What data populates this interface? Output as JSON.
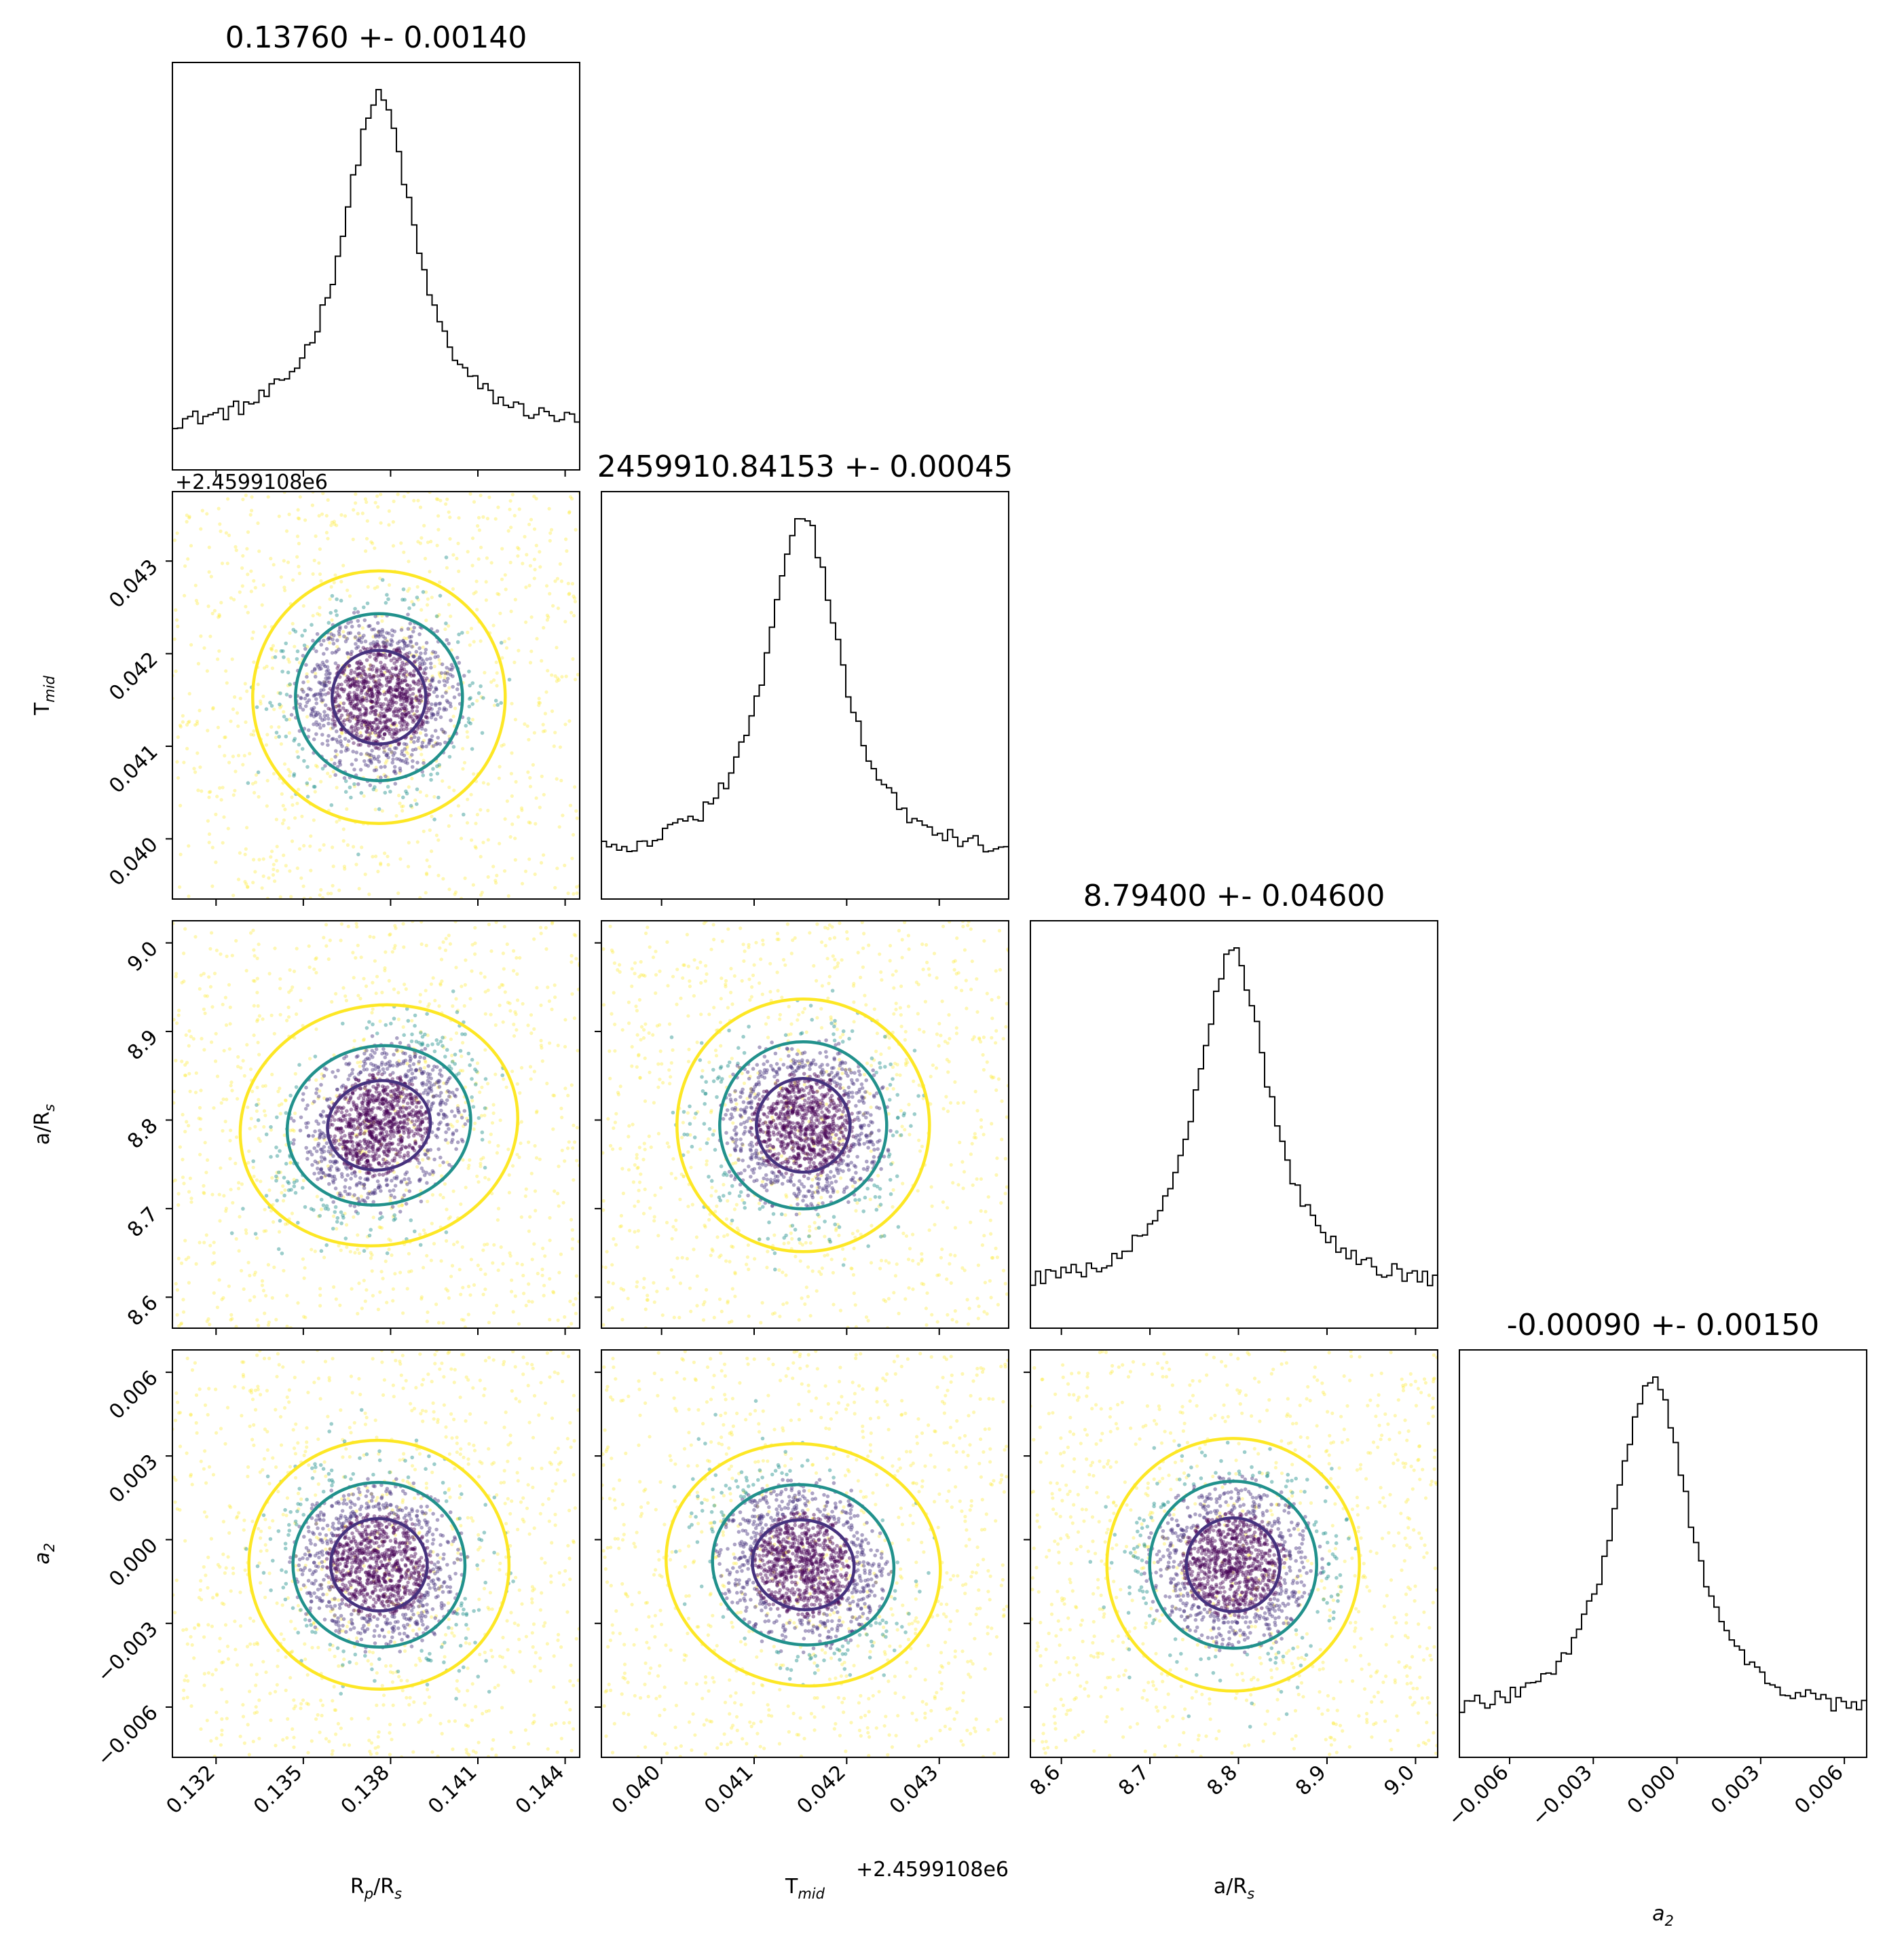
{
  "chart_data": {
    "type": "corner",
    "parameters": [
      {
        "key": "rp",
        "label": "R",
        "sub": "p",
        "label_rest": "/R",
        "sub2": "s",
        "center": 0.1376,
        "sigma": 0.0014,
        "range": [
          0.1305,
          0.1445
        ]
      },
      {
        "key": "tmid",
        "label": "T",
        "sub": "mid",
        "label_rest": "",
        "sub2": "",
        "center": 0.04153,
        "sigma": 0.00045,
        "range": [
          0.03935,
          0.04375
        ],
        "offset": "+2.4599108e6"
      },
      {
        "key": "ars",
        "label": "a/R",
        "sub": "s",
        "label_rest": "",
        "sub2": "",
        "center": 8.794,
        "sigma": 0.046,
        "range": [
          8.565,
          9.025
        ]
      },
      {
        "key": "a2",
        "label": "a",
        "sub": "2",
        "label_rest": "",
        "sub2": "",
        "center": -0.0009,
        "sigma": 0.0015,
        "range": [
          -0.0078,
          0.0068
        ]
      }
    ],
    "titles": [
      "0.13760 +- 0.00140",
      "2459910.84153 +- 0.00045",
      "8.79400 +- 0.04600",
      "-0.00090 +- 0.00150"
    ],
    "ticks": {
      "rp": [
        "0.132",
        "0.135",
        "0.138",
        "0.141",
        "0.144"
      ],
      "tmid": [
        "0.040",
        "0.041",
        "0.042",
        "0.043"
      ],
      "ars": [
        "8.6",
        "8.7",
        "8.8",
        "8.9",
        "9.0"
      ],
      "a2": [
        "−0.006",
        "−0.003",
        "0.000",
        "0.003",
        "0.006"
      ]
    },
    "tick_values": {
      "rp": [
        0.132,
        0.135,
        0.138,
        0.141,
        0.144
      ],
      "tmid": [
        0.04,
        0.041,
        0.042,
        0.043
      ],
      "ars": [
        8.6,
        8.7,
        8.8,
        8.9,
        9.0
      ],
      "a2": [
        -0.006,
        -0.003,
        0.0,
        0.003,
        0.006
      ]
    },
    "correlations": {
      "ars_rp": 0.35,
      "a2_tmid": -0.3,
      "a2_rp": -0.1,
      "tmid_rp": 0.0,
      "ars_tmid": 0.0,
      "a2_ars": 0.0
    },
    "colors": {
      "contour_inner": "#46327e",
      "contour_mid": "#21918c",
      "contour_outer": "#fde725",
      "point_core": "#440154",
      "line": "#000000"
    }
  }
}
